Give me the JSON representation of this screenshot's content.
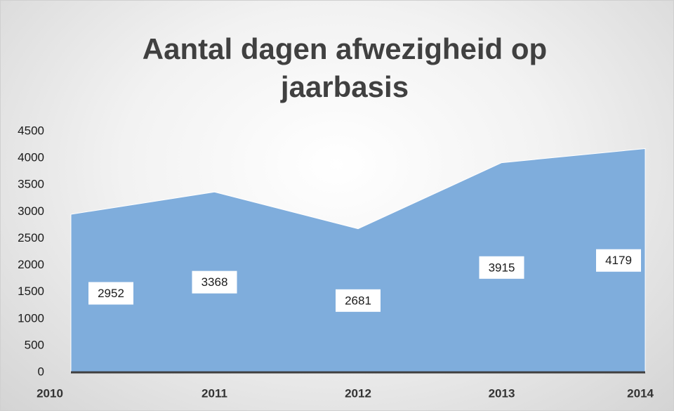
{
  "chart_data": {
    "type": "area",
    "title": "Aantal dagen afwezigheid op jaarbasis",
    "categories": [
      "2010",
      "2011",
      "2012",
      "2013",
      "2014"
    ],
    "values": [
      2952,
      3368,
      2681,
      3915,
      4179
    ],
    "color": "#7faddc",
    "ylim": [
      0,
      4500
    ],
    "yticks": [
      0,
      500,
      1000,
      1500,
      2000,
      2500,
      3000,
      3500,
      4000,
      4500
    ]
  }
}
